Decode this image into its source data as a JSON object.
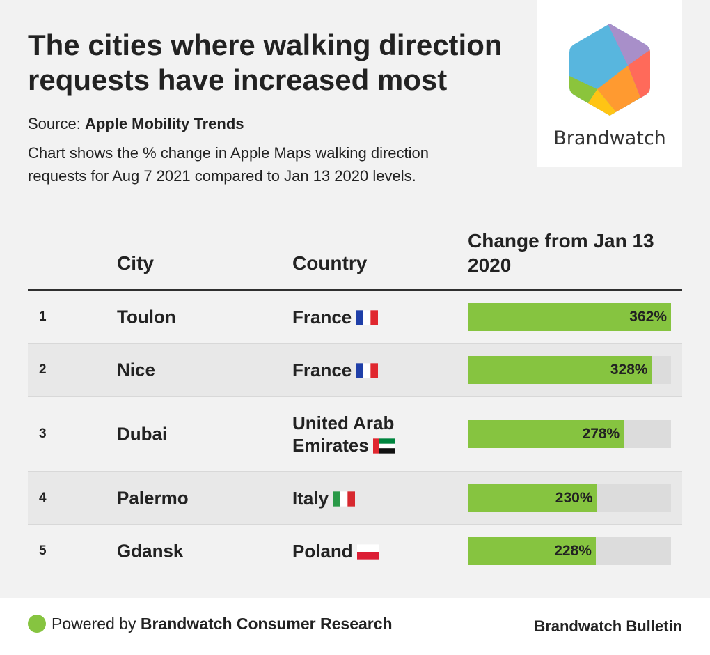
{
  "header": {
    "title": "The cities where walking direction requests have increased most",
    "source_label": "Source:",
    "source_name": "Apple Mobility Trends",
    "description": "Chart shows the % change in Apple Maps walking direction requests for Aug 7 2021 compared to Jan 13 2020 levels."
  },
  "logo": {
    "text": "Brandwatch",
    "icon": "brandwatch-hexagon-logo"
  },
  "table": {
    "col_city": "City",
    "col_country": "Country",
    "col_change": "Change from Jan 13 2020"
  },
  "chart_data": {
    "type": "table",
    "title": "The cities where walking direction requests have increased most",
    "columns": [
      "",
      "City",
      "Country",
      "Change from Jan 13 2020"
    ],
    "rows": [
      {
        "rank": "1",
        "city": "Toulon",
        "country": "France",
        "flag": "flag-france",
        "value": 362,
        "label": "362%"
      },
      {
        "rank": "2",
        "city": "Nice",
        "country": "France",
        "flag": "flag-france",
        "value": 328,
        "label": "328%"
      },
      {
        "rank": "3",
        "city": "Dubai",
        "country": "United Arab Emirates",
        "flag": "flag-uae",
        "value": 278,
        "label": "278%"
      },
      {
        "rank": "4",
        "city": "Palermo",
        "country": "Italy",
        "flag": "flag-italy",
        "value": 230,
        "label": "230%"
      },
      {
        "rank": "5",
        "city": "Gdansk",
        "country": "Poland",
        "flag": "flag-poland",
        "value": 228,
        "label": "228%"
      }
    ],
    "bar_max": 362,
    "bar_color": "#86c440",
    "track_color": "#dcdcdc"
  },
  "footer": {
    "powered_prefix": "Powered by",
    "powered_name": "Brandwatch Consumer Research",
    "bulletin": "Brandwatch Bulletin"
  },
  "colors": {
    "background": "#f2f2f2",
    "accent": "#86c440",
    "text": "#222222"
  }
}
